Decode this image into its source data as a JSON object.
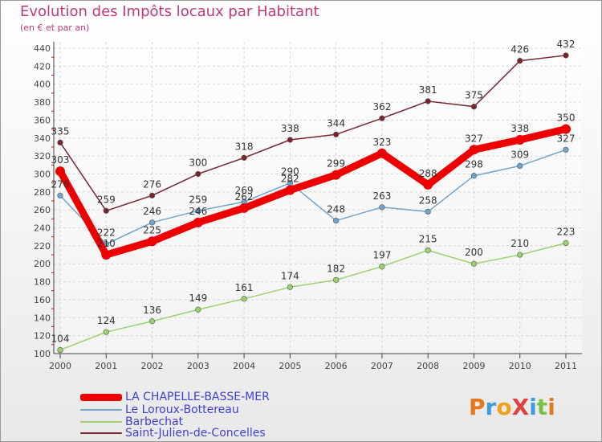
{
  "title": "Evolution des Impôts locaux par Habitant",
  "subtitle": "(en € et par an)",
  "logo": {
    "text": "ProXiti",
    "colors": [
      "#e8781f",
      "#3d9be0",
      "#f0a11c",
      "#e04040",
      "#3d9be0",
      "#7cc143",
      "#e8781f"
    ]
  },
  "chart_data": {
    "type": "line",
    "x": [
      "2000",
      "2001",
      "2002",
      "2003",
      "2004",
      "2005",
      "2006",
      "2007",
      "2008",
      "2009",
      "2010",
      "2011"
    ],
    "ylim": [
      100,
      440
    ],
    "yticks": [
      100,
      120,
      140,
      160,
      180,
      200,
      220,
      240,
      260,
      280,
      300,
      320,
      340,
      360,
      380,
      400,
      420,
      440
    ],
    "grid": true,
    "series": [
      {
        "name": "Saint-Julien-de-Concelles",
        "color": "#7a2430",
        "values": [
          335,
          259,
          276,
          300,
          318,
          338,
          344,
          362,
          381,
          375,
          426,
          432
        ],
        "labels": [
          "335",
          "259",
          "276",
          "300",
          "318",
          "338",
          "344",
          "362",
          "381",
          "375",
          "426",
          "432"
        ]
      },
      {
        "name": "Barbechat",
        "color": "#9cd26e",
        "values": [
          104,
          124,
          136,
          149,
          161,
          174,
          182,
          197,
          215,
          200,
          210,
          223
        ],
        "labels": [
          "104",
          "124",
          "136",
          "149",
          "161",
          "174",
          "182",
          "197",
          "215",
          "200",
          "210",
          "223"
        ]
      },
      {
        "name": "Le Loroux-Bottereau",
        "color": "#6fa4cf",
        "values": [
          276,
          222,
          246,
          259,
          269,
          290,
          248,
          263,
          258,
          298,
          309,
          327
        ],
        "labels": [
          "276",
          "222",
          "246",
          "259",
          "269",
          "290",
          "248",
          "263",
          "258",
          "298",
          "309",
          "327"
        ]
      },
      {
        "name": "LA CHAPELLE-BASSE-MER",
        "color": "#ee0000",
        "values": [
          303,
          210,
          225,
          246,
          262,
          282,
          299,
          323,
          288,
          327,
          338,
          350
        ],
        "labels": [
          "303",
          "210",
          "225",
          "246",
          "262",
          "282",
          "299",
          "323",
          "288",
          "327",
          "338",
          "350"
        ]
      }
    ],
    "legend": [
      {
        "name": "LA CHAPELLE-BASSE-MER",
        "color": "#ee0000"
      },
      {
        "name": "Le Loroux-Bottereau",
        "color": "#6fa4cf"
      },
      {
        "name": "Barbechat",
        "color": "#9cd26e"
      },
      {
        "name": "Saint-Julien-de-Concelles",
        "color": "#7a2430"
      }
    ]
  }
}
